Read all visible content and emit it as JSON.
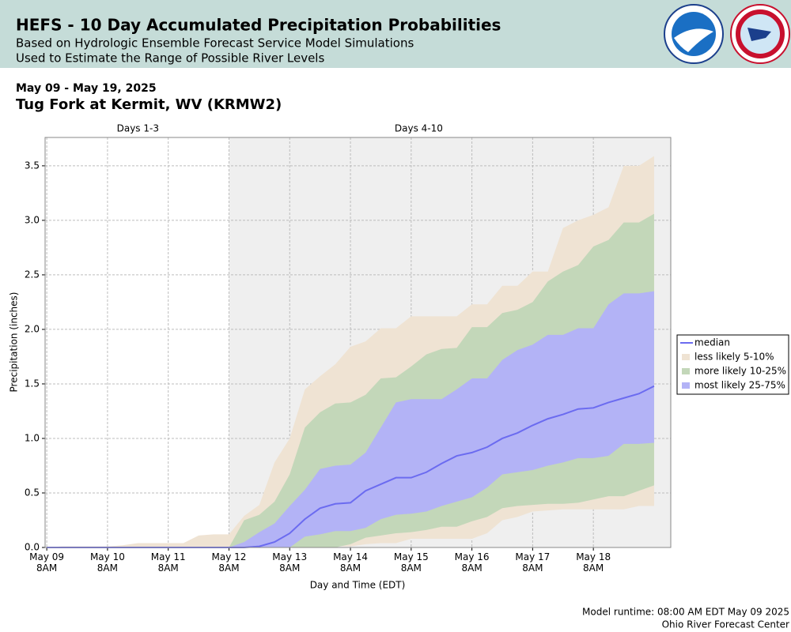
{
  "chart_data": {
    "type": "band",
    "title": "HEFS - 10 Day Accumulated Precipitation Probabilities",
    "subtitle": [
      "Based on Hydrologic Ensemble Forecast Service Model Simulations",
      "Used to Estimate the Range of Possible River Levels"
    ],
    "date_range": "May 09 - May 19, 2025",
    "location": "Tug Fork at Kermit, WV (KRMW2)",
    "x_label": "Day and Time (EDT)",
    "y_label": "Precipitation (inches)",
    "footer": [
      "Model runtime: 08:00 AM EDT May 09 2025",
      "Ohio River Forecast Center"
    ],
    "annotations": [
      {
        "label": "Days 1-3",
        "range": [
          "2025-05-09 08:00",
          "2025-05-12 08:00"
        ],
        "shaded": false
      },
      {
        "label": "Days 4-10",
        "range": [
          "2025-05-12 08:00",
          "2025-05-18 14:00"
        ],
        "shaded": true,
        "color": "#efefef"
      }
    ],
    "grid": true,
    "legend": "right",
    "xlim": [
      "2025-05-09 07:20",
      "2025-05-19 14:35"
    ],
    "ylim": [
      0,
      3.76
    ],
    "yticks": [
      {
        "value": 0,
        "label": "0.0"
      },
      {
        "value": 0.5,
        "label": "0.5"
      },
      {
        "value": 1,
        "label": "1.0"
      },
      {
        "value": 1.5,
        "label": "1.5"
      },
      {
        "value": 2,
        "label": "2.0"
      },
      {
        "value": 2.5,
        "label": "2.5"
      },
      {
        "value": 3,
        "label": "3.0"
      },
      {
        "value": 3.5,
        "label": "3.5"
      }
    ],
    "xticks": [
      {
        "value": "2025-05-09 08:00",
        "label": "May 09\n8AM"
      },
      {
        "value": "2025-05-10 08:00",
        "label": "May 10\n8AM"
      },
      {
        "value": "2025-05-11 08:00",
        "label": "May 11\n8AM"
      },
      {
        "value": "2025-05-12 08:00",
        "label": "May 12\n8AM"
      },
      {
        "value": "2025-05-13 08:00",
        "label": "May 13\n8AM"
      },
      {
        "value": "2025-05-14 08:00",
        "label": "May 14\n8AM"
      },
      {
        "value": "2025-05-15 08:00",
        "label": "May 15\n8AM"
      },
      {
        "value": "2025-05-16 08:00",
        "label": "May 16\n8AM"
      },
      {
        "value": "2025-05-17 08:00",
        "label": "May 17\n8AM"
      },
      {
        "value": "2025-05-18 08:00",
        "label": "May 18\n8AM"
      }
    ],
    "x": [
      "2025-05-09 08:00",
      "2025-05-09 14:00",
      "2025-05-09 20:00",
      "2025-05-10 02:00",
      "2025-05-10 08:00",
      "2025-05-10 14:00",
      "2025-05-10 20:00",
      "2025-05-11 02:00",
      "2025-05-11 08:00",
      "2025-05-11 14:00",
      "2025-05-11 20:00",
      "2025-05-12 02:00",
      "2025-05-12 08:00",
      "2025-05-12 14:00",
      "2025-05-12 20:00",
      "2025-05-13 02:00",
      "2025-05-13 08:00",
      "2025-05-13 14:00",
      "2025-05-13 20:00",
      "2025-05-14 02:00",
      "2025-05-14 08:00",
      "2025-05-14 14:00",
      "2025-05-14 20:00",
      "2025-05-15 02:00",
      "2025-05-15 08:00",
      "2025-05-15 14:00",
      "2025-05-15 20:00",
      "2025-05-16 02:00",
      "2025-05-16 08:00",
      "2025-05-16 14:00",
      "2025-05-16 20:00",
      "2025-05-17 02:00",
      "2025-05-17 08:00",
      "2025-05-17 14:00",
      "2025-05-17 20:00",
      "2025-05-18 02:00",
      "2025-05-18 08:00",
      "2025-05-18 14:00",
      "2025-05-18 20:00",
      "2025-05-19 02:00",
      "2025-05-19 08:00"
    ],
    "series": [
      {
        "name": "median",
        "color": "#6b6bf0",
        "values": [
          0,
          0,
          0,
          0,
          0,
          0,
          0,
          0,
          0,
          0,
          0,
          0,
          0,
          0,
          0.01,
          0.05,
          0.13,
          0.26,
          0.36,
          0.4,
          0.41,
          0.52,
          0.58,
          0.64,
          0.64,
          0.69,
          0.77,
          0.84,
          0.87,
          0.92,
          1.0,
          1.05,
          1.12,
          1.18,
          1.22,
          1.27,
          1.28,
          1.33,
          1.37,
          1.41,
          1.48
        ]
      },
      {
        "name": "less likely 5-10%",
        "color": "#efe3d3",
        "high": [
          0,
          0.01,
          0.01,
          0.01,
          0.01,
          0.02,
          0.04,
          0.04,
          0.04,
          0.04,
          0.11,
          0.12,
          0.12,
          0.29,
          0.39,
          0.78,
          1.0,
          1.45,
          1.57,
          1.68,
          1.84,
          1.89,
          2.01,
          2.01,
          2.12,
          2.12,
          2.12,
          2.12,
          2.23,
          2.23,
          2.4,
          2.4,
          2.53,
          2.53,
          2.93,
          3.0,
          3.05,
          3.12,
          3.5,
          3.5,
          3.59
        ],
        "low": [
          0,
          0,
          0,
          0,
          0,
          0,
          0,
          0,
          0,
          0,
          0,
          0,
          0,
          0,
          0,
          0,
          0,
          0,
          0,
          0.01,
          0.01,
          0.03,
          0.04,
          0.04,
          0.08,
          0.08,
          0.08,
          0.08,
          0.08,
          0.13,
          0.25,
          0.28,
          0.33,
          0.34,
          0.35,
          0.35,
          0.35,
          0.35,
          0.35,
          0.38,
          0.38
        ]
      },
      {
        "name": "more likely 10-25%",
        "color": "#c3d7b9",
        "high": [
          0,
          0,
          0,
          0,
          0,
          0,
          0,
          0,
          0,
          0,
          0,
          0,
          0,
          0.25,
          0.3,
          0.42,
          0.67,
          1.1,
          1.24,
          1.32,
          1.33,
          1.4,
          1.55,
          1.56,
          1.66,
          1.77,
          1.82,
          1.83,
          2.02,
          2.02,
          2.15,
          2.18,
          2.25,
          2.44,
          2.53,
          2.59,
          2.76,
          2.82,
          2.98,
          2.98,
          3.06
        ],
        "low": [
          0,
          0,
          0,
          0,
          0,
          0,
          0,
          0,
          0,
          0,
          0,
          0,
          0,
          0,
          0,
          0,
          0,
          0,
          0,
          0,
          0.03,
          0.09,
          0.11,
          0.13,
          0.14,
          0.16,
          0.19,
          0.19,
          0.24,
          0.28,
          0.36,
          0.38,
          0.39,
          0.4,
          0.4,
          0.41,
          0.44,
          0.47,
          0.47,
          0.52,
          0.57
        ]
      },
      {
        "name": "most likely 25-75%",
        "color": "#b3b3f6",
        "high": [
          0,
          0,
          0,
          0,
          0,
          0,
          0,
          0,
          0,
          0,
          0,
          0,
          0,
          0.05,
          0.14,
          0.22,
          0.38,
          0.53,
          0.72,
          0.75,
          0.76,
          0.87,
          1.1,
          1.33,
          1.36,
          1.36,
          1.36,
          1.45,
          1.55,
          1.55,
          1.72,
          1.81,
          1.86,
          1.95,
          1.95,
          2.01,
          2.01,
          2.23,
          2.33,
          2.33,
          2.35
        ],
        "low": [
          0,
          0,
          0,
          0,
          0,
          0,
          0,
          0,
          0,
          0,
          0,
          0,
          0,
          0,
          0,
          0,
          0,
          0.1,
          0.12,
          0.15,
          0.15,
          0.18,
          0.26,
          0.3,
          0.31,
          0.33,
          0.38,
          0.42,
          0.46,
          0.55,
          0.67,
          0.69,
          0.71,
          0.75,
          0.78,
          0.82,
          0.82,
          0.84,
          0.95,
          0.95,
          0.96
        ]
      }
    ]
  }
}
